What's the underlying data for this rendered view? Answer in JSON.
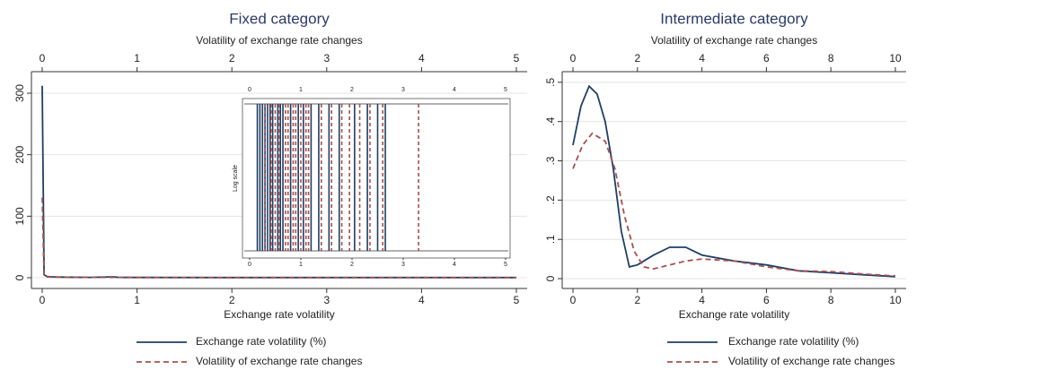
{
  "chart_data": [
    {
      "type": "line",
      "title": "Fixed category",
      "xlabel": "Exchange rate volatility",
      "x2label": "Volatility of exchange rate changes",
      "xlim": [
        0,
        5
      ],
      "xticks": [
        0,
        1,
        2,
        3,
        4,
        5
      ],
      "x2lim": [
        0,
        5
      ],
      "x2ticks": [
        0,
        1,
        2,
        3,
        4,
        5
      ],
      "ylim": [
        -17.5,
        335
      ],
      "yticks": [
        0,
        100,
        200,
        300
      ],
      "grid": true,
      "legend": "bottom",
      "series": [
        {
          "name": "Exchange rate volatility (%)",
          "color": "#1f3f66",
          "dash": false,
          "x": [
            0,
            0.02,
            0.05,
            0.1,
            0.2,
            0.5,
            0.75,
            0.8,
            1,
            2,
            3,
            4,
            5
          ],
          "values": [
            312,
            5,
            2,
            1.5,
            1,
            0.5,
            1.5,
            0.5,
            0.4,
            0.3,
            0.3,
            0.3,
            0.3
          ]
        },
        {
          "name": "Volatility of exchange rate changes",
          "color": "#a8504c",
          "dash": true,
          "x": [
            0,
            0.02,
            0.05,
            0.1,
            0.2,
            0.5,
            1,
            2,
            3,
            4,
            5
          ],
          "values": [
            130,
            3,
            1.5,
            1,
            0.8,
            0.5,
            0.4,
            0.3,
            0.3,
            0.3,
            0.3
          ]
        }
      ],
      "inset": {
        "ylabel": "Log scale",
        "xlim": [
          0,
          5
        ],
        "xticks": [
          0,
          1,
          2,
          3,
          4,
          5
        ],
        "series": [
          {
            "color": "#1f3f66",
            "dash": false,
            "x": [
              0.15,
              0.2,
              0.25,
              0.3,
              0.35,
              0.4,
              0.45,
              0.55,
              0.6,
              0.65,
              0.8,
              0.95,
              1.05,
              1.2,
              1.35,
              1.55,
              1.75,
              2.05,
              2.3,
              2.5,
              2.65
            ]
          },
          {
            "color": "#a8504c",
            "dash": true,
            "x": [
              0.3,
              0.42,
              0.5,
              0.58,
              0.7,
              0.75,
              0.85,
              0.9,
              1.0,
              1.1,
              1.15,
              1.4,
              1.6,
              1.8,
              1.95,
              2.15,
              2.35,
              2.6,
              3.3
            ]
          }
        ]
      }
    },
    {
      "type": "line",
      "title": "Intermediate category",
      "xlabel": "Exchange rate volatility",
      "x2label": "Volatility of exchange rate changes",
      "xlim": [
        0,
        10
      ],
      "xticks": [
        0,
        2,
        4,
        6,
        8,
        10
      ],
      "x2lim": [
        0,
        10
      ],
      "x2ticks": [
        0,
        2,
        4,
        6,
        8,
        10
      ],
      "ylim": [
        -0.025,
        0.527
      ],
      "yticks": [
        0,
        {
          "value": 0.1,
          "label": ".1"
        },
        {
          "value": 0.2,
          "label": ".2"
        },
        {
          "value": 0.3,
          "label": ".3"
        },
        {
          "value": 0.4,
          "label": ".4"
        },
        {
          "value": 0.5,
          "label": ".5"
        }
      ],
      "grid": true,
      "legend": "bottom",
      "series": [
        {
          "name": "Exchange rate volatility (%)",
          "color": "#1f3f66",
          "dash": false,
          "x": [
            0,
            0.25,
            0.5,
            0.75,
            1,
            1.25,
            1.5,
            1.75,
            2,
            2.5,
            3,
            3.5,
            4,
            5,
            6,
            7,
            8,
            9,
            10
          ],
          "values": [
            0.34,
            0.44,
            0.49,
            0.47,
            0.4,
            0.28,
            0.12,
            0.03,
            0.035,
            0.06,
            0.08,
            0.08,
            0.06,
            0.045,
            0.035,
            0.02,
            0.015,
            0.01,
            0.005
          ]
        },
        {
          "name": "Volatility of exchange rate changes",
          "color": "#a8504c",
          "dash": true,
          "x": [
            0,
            0.3,
            0.6,
            1,
            1.3,
            1.6,
            1.9,
            2.2,
            2.5,
            3,
            3.5,
            4,
            5,
            6,
            7,
            8,
            9,
            10
          ],
          "values": [
            0.28,
            0.34,
            0.37,
            0.35,
            0.28,
            0.16,
            0.07,
            0.03,
            0.025,
            0.035,
            0.045,
            0.05,
            0.045,
            0.03,
            0.02,
            0.018,
            0.012,
            0.007
          ]
        }
      ]
    }
  ]
}
